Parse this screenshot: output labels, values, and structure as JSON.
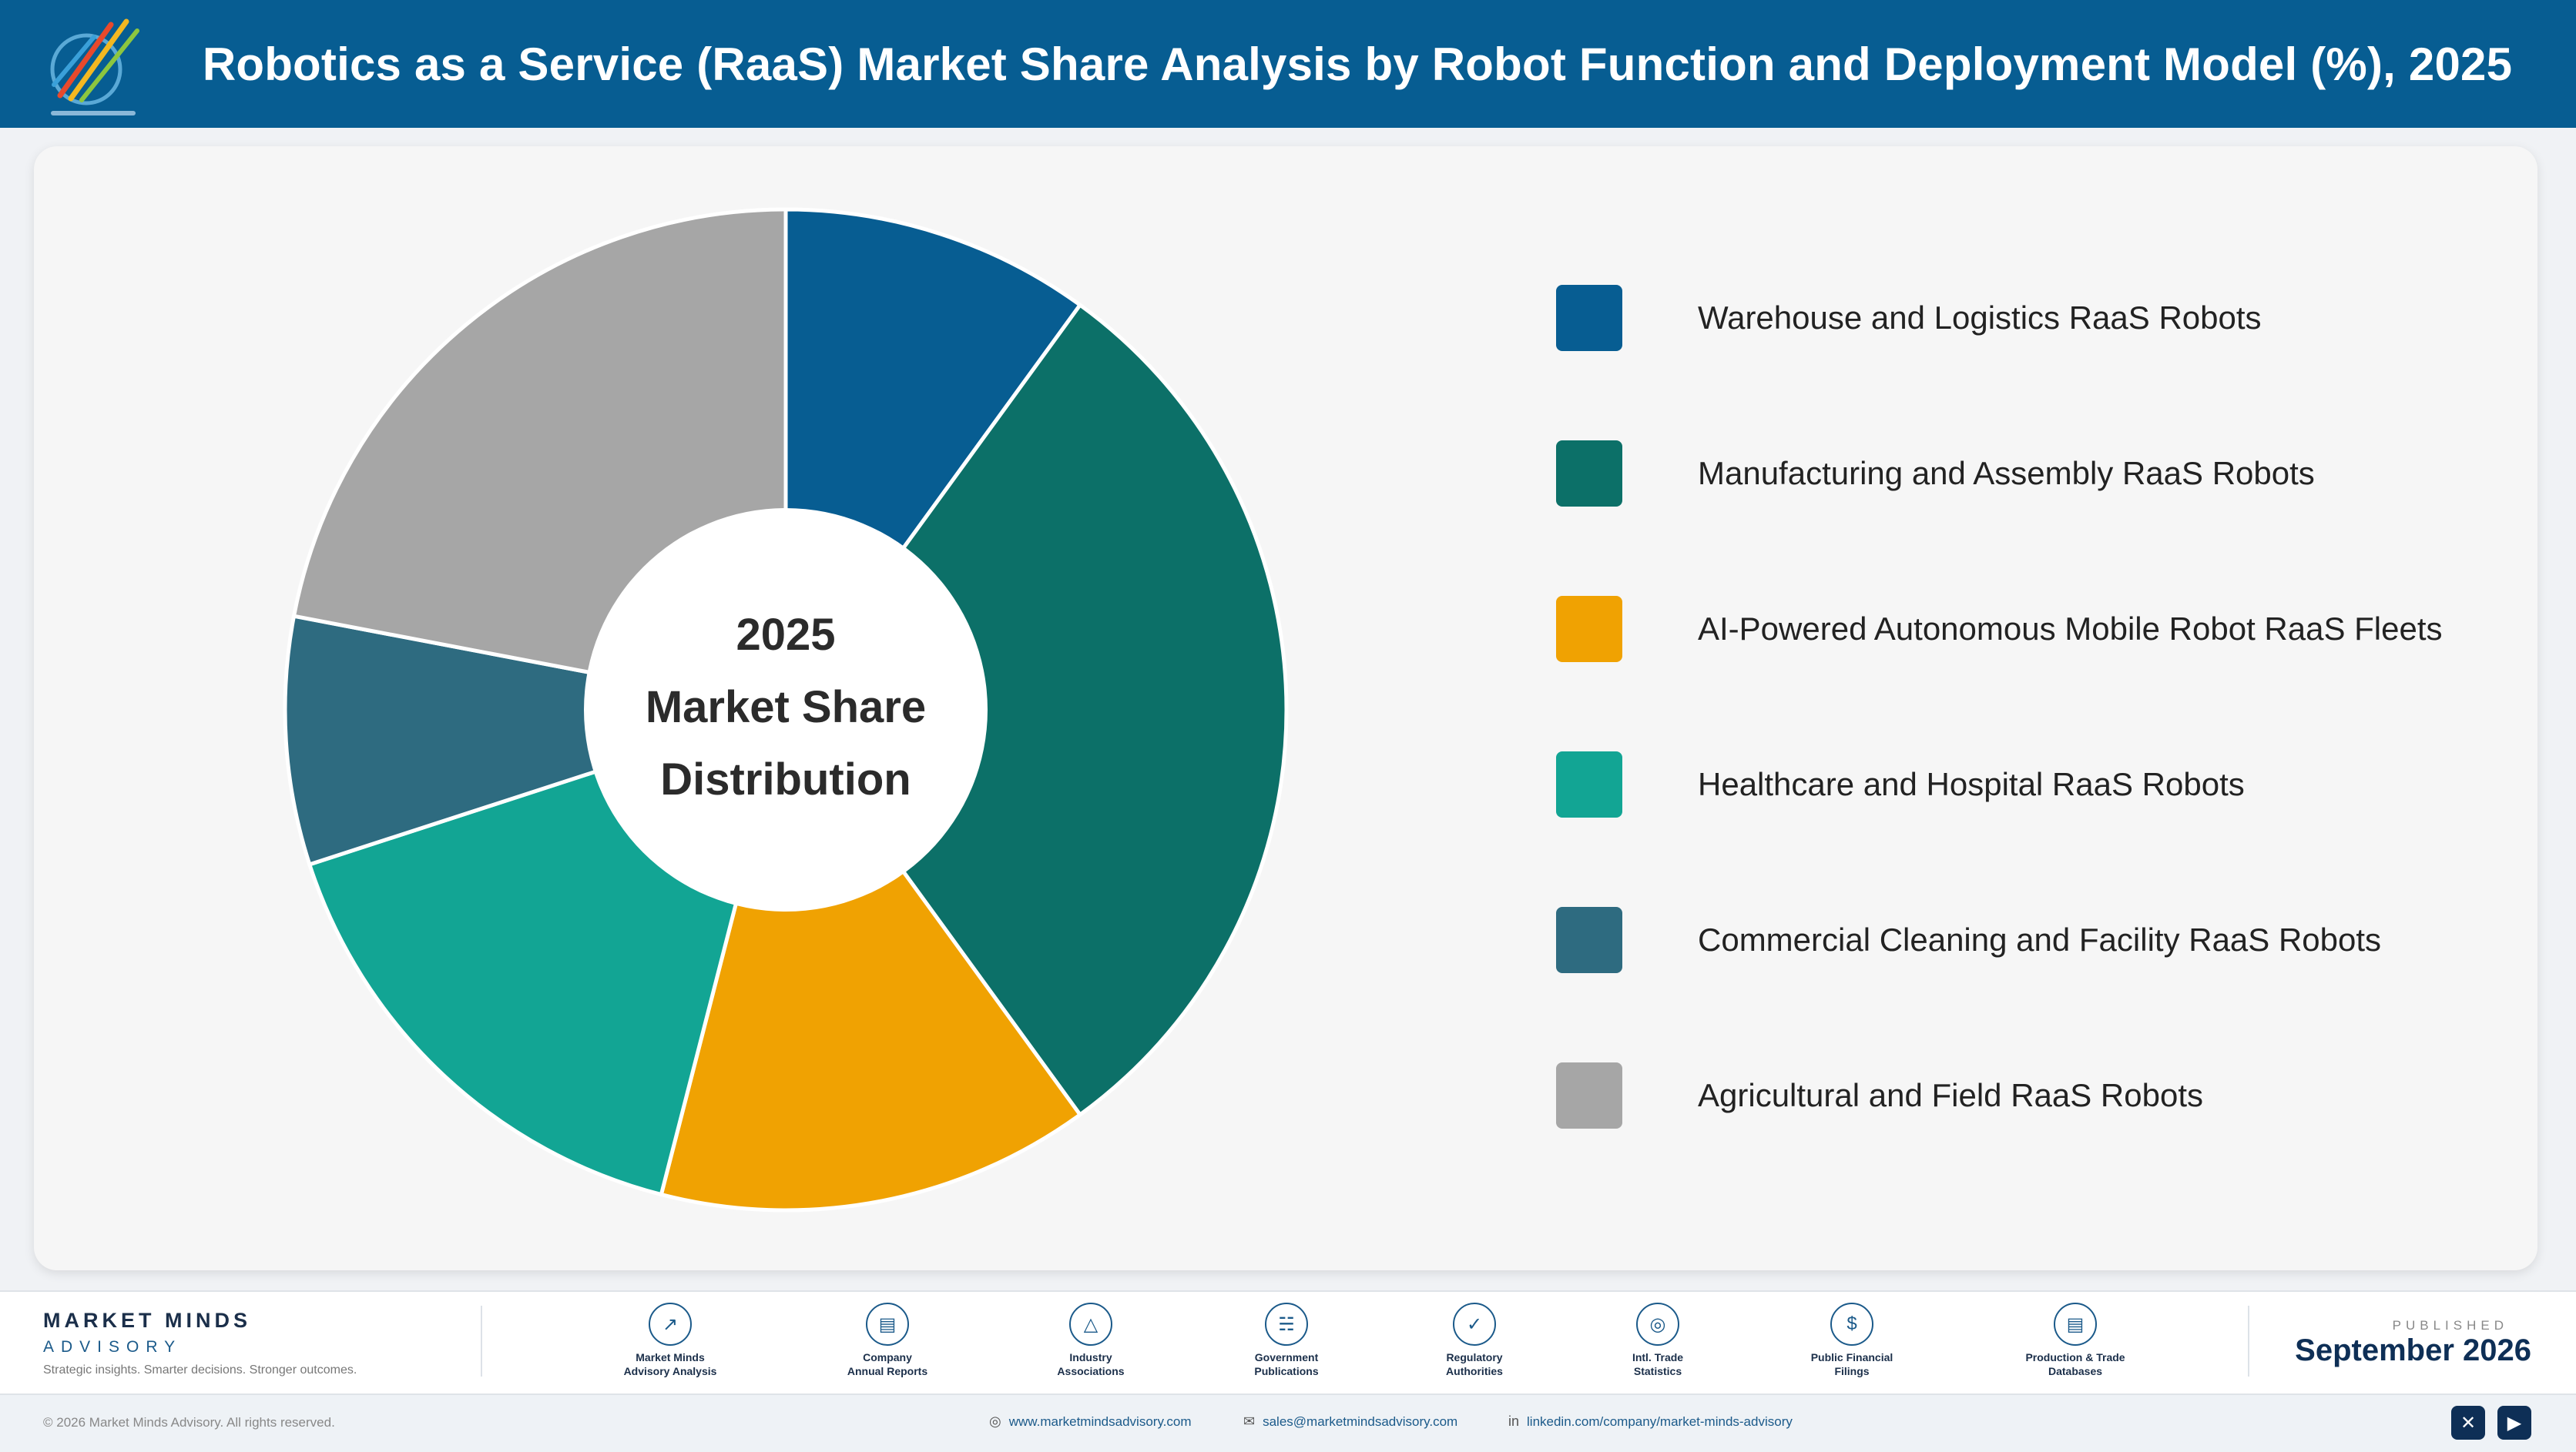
{
  "header": {
    "title": "Robotics as a Service (RaaS) Market Share Analysis by Robot Function and Deployment Model (%), 2025",
    "logo_icon": "market-minds-logo"
  },
  "chart_data": {
    "type": "pie",
    "title": "Robotics as a Service (RaaS) Market Share Analysis by Robot Function and Deployment Model (%), 2025",
    "center_label": [
      "2025",
      "Market Share",
      "Distribution"
    ],
    "categories": [
      "Warehouse and Logistics RaaS Robots",
      "Manufacturing and Assembly RaaS Robots",
      "AI-Powered Autonomous Mobile Robot RaaS Fleets",
      "Healthcare and Hospital RaaS Robots",
      "Commercial Cleaning and Facility RaaS Robots",
      "Agricultural and Field RaaS Robots"
    ],
    "values": [
      10,
      30,
      14,
      16,
      8,
      22
    ],
    "colors": [
      "#075d92",
      "#0c7068",
      "#f0a202",
      "#12a594",
      "#2e6b80",
      "#a6a6a6"
    ],
    "legend_position": "right",
    "donut": true
  },
  "footer": {
    "brand_name": "MARKET MINDS",
    "brand_sub": "ADVISORY",
    "brand_tagline": "Strategic insights. Smarter decisions. Stronger outcomes.",
    "sources": [
      {
        "line1": "Market Minds",
        "line2": "Advisory Analysis",
        "icon": "trend-chart-icon"
      },
      {
        "line1": "Company",
        "line2": "Annual Reports",
        "icon": "document-icon"
      },
      {
        "line1": "Industry",
        "line2": "Associations",
        "icon": "network-icon"
      },
      {
        "line1": "Government",
        "line2": "Publications",
        "icon": "government-building-icon"
      },
      {
        "line1": "Regulatory",
        "line2": "Authorities",
        "icon": "shield-check-icon"
      },
      {
        "line1": "Intl. Trade",
        "line2": "Statistics",
        "icon": "globe-icon"
      },
      {
        "line1": "Public Financial",
        "line2": "Filings",
        "icon": "dollar-coin-icon"
      },
      {
        "line1": "Production & Trade",
        "line2": "Databases",
        "icon": "database-icon"
      }
    ],
    "published_label": "PUBLISHED",
    "published_date": "September 2026",
    "copyright": "© 2026 Market Minds Advisory. All rights reserved.",
    "website": "www.marketmindsadvisory.com",
    "email": "sales@marketmindsadvisory.com",
    "linkedin": "linkedin.com/company/market-minds-advisory"
  }
}
